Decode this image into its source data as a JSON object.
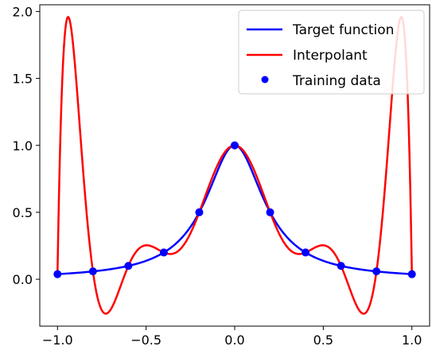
{
  "chart_data": {
    "type": "line",
    "title": "",
    "xlabel": "",
    "ylabel": "",
    "xlim": [
      -1.1,
      1.1
    ],
    "ylim": [
      -0.35,
      2.05
    ],
    "xticks": [
      -1.0,
      -0.5,
      0.0,
      0.5,
      1.0
    ],
    "xtick_labels": [
      "−1.0",
      "−0.5",
      "0.0",
      "0.5",
      "1.0"
    ],
    "yticks": [
      0.0,
      0.5,
      1.0,
      1.5,
      2.0
    ],
    "ytick_labels": [
      "0.0",
      "0.5",
      "1.0",
      "1.5",
      "2.0"
    ],
    "grid": false,
    "legend_position": "top-right",
    "series": [
      {
        "name": "Target function",
        "kind": "line",
        "color": "#0000ff",
        "function": "1/(1+25*x^2)",
        "x_range": [
          -1.0,
          1.0
        ]
      },
      {
        "name": "Interpolant",
        "kind": "line",
        "color": "#ff0000",
        "function": "degree-10 polynomial interpolating the training data",
        "x_range": [
          -1.0,
          1.0
        ]
      },
      {
        "name": "Training data",
        "kind": "scatter",
        "color": "#0000ff",
        "x": [
          -1.0,
          -0.8,
          -0.6,
          -0.4,
          -0.2,
          0.0,
          0.2,
          0.4,
          0.6,
          0.8,
          1.0
        ],
        "y": [
          0.038,
          0.059,
          0.1,
          0.2,
          0.5,
          1.0,
          0.5,
          0.2,
          0.1,
          0.059,
          0.038
        ]
      }
    ]
  }
}
